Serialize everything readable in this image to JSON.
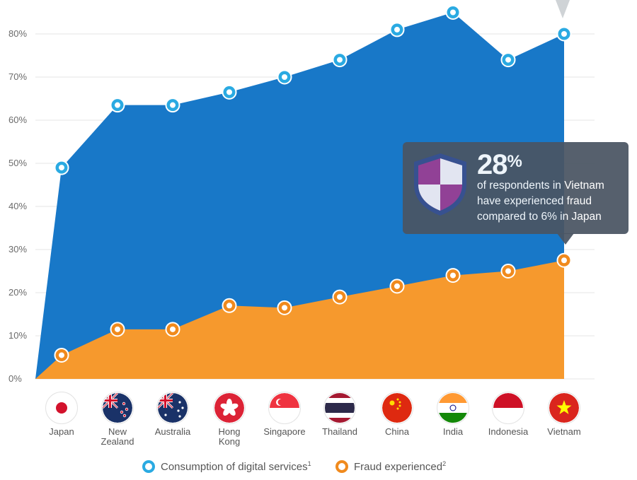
{
  "chart_data": {
    "type": "area",
    "categories": [
      "Japan",
      "New Zealand",
      "Australia",
      "Hong Kong",
      "Singapore",
      "Thailand",
      "China",
      "India",
      "Indonesia",
      "Vietnam"
    ],
    "category_lines": [
      [
        "Japan"
      ],
      [
        "New",
        "Zealand"
      ],
      [
        "Australia"
      ],
      [
        "Hong",
        "Kong"
      ],
      [
        "Singapore"
      ],
      [
        "Thailand"
      ],
      [
        "China"
      ],
      [
        "India"
      ],
      [
        "Indonesia"
      ],
      [
        "Vietnam"
      ]
    ],
    "series": [
      {
        "name": "Consumption of digital services",
        "footnote": "1",
        "color": "#1878c8",
        "marker_color": "#2aaae2",
        "values": [
          49,
          63.5,
          63.5,
          66.5,
          70,
          74,
          81,
          85,
          74,
          80
        ]
      },
      {
        "name": "Fraud experienced",
        "footnote": "2",
        "color": "#f6992d",
        "marker_color": "#f08a1d",
        "values": [
          5.5,
          11.5,
          11.5,
          17,
          16.5,
          19,
          21.5,
          24,
          25,
          27.5
        ]
      }
    ],
    "ylim": [
      0,
      80
    ],
    "yticks": [
      0,
      10,
      20,
      30,
      40,
      50,
      60,
      70,
      80
    ],
    "ytick_labels": [
      "0%",
      "10%",
      "20%",
      "30%",
      "40%",
      "50%",
      "60%",
      "70%",
      "80%"
    ],
    "grid": true,
    "legend_position": "bottom"
  },
  "callout": {
    "headline": "28",
    "headline_unit": "%",
    "lines": [
      "of respondents in Vietnam",
      "have experienced fraud",
      "compared to 6% in Japan"
    ],
    "shield_colors": {
      "outer": "#3a4f8c",
      "dark": "#9b3d93",
      "light": "#f2eef5"
    }
  },
  "flag_icons": [
    "japan-flag-icon",
    "new-zealand-flag-icon",
    "australia-flag-icon",
    "hong-kong-flag-icon",
    "singapore-flag-icon",
    "thailand-flag-icon",
    "china-flag-icon",
    "india-flag-icon",
    "indonesia-flag-icon",
    "vietnam-flag-icon"
  ]
}
